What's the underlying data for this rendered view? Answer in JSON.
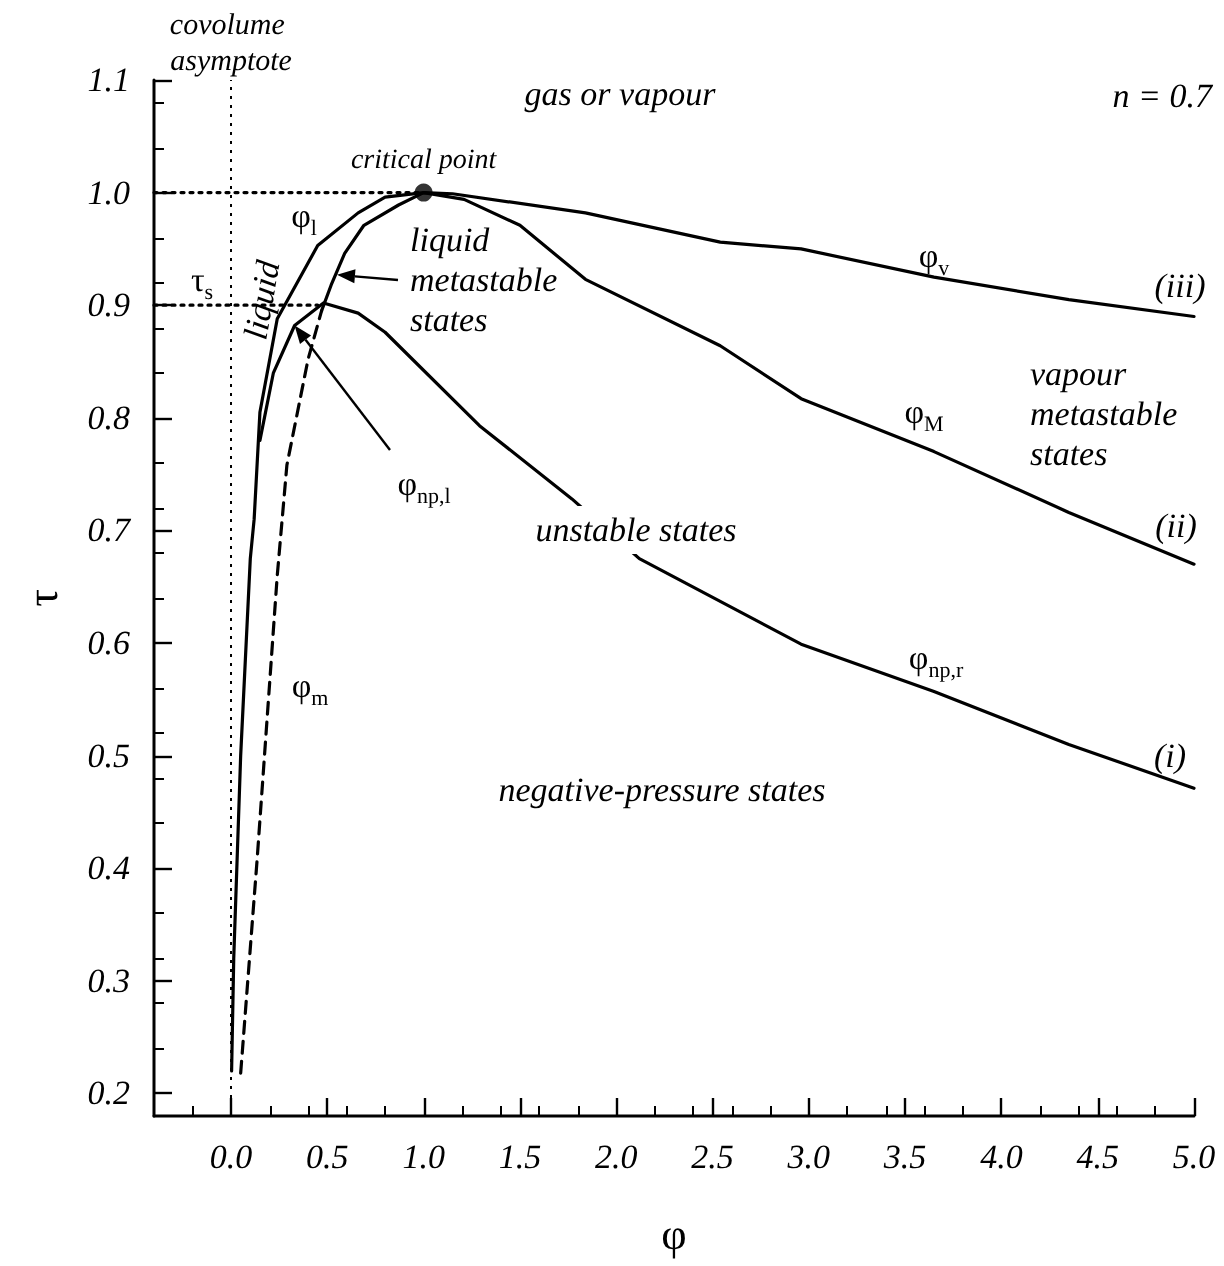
{
  "chart_data": {
    "type": "line",
    "xlabel": "φ",
    "ylabel": "τ",
    "xlim": [
      -0.4,
      5.0
    ],
    "ylim": [
      0.18,
      1.1
    ],
    "xticks": [
      {
        "value": 0,
        "label": "0.0"
      },
      0.5,
      {
        "value": 1,
        "label": "1.0"
      },
      1.5,
      {
        "value": 2,
        "label": "2.0"
      },
      2.5,
      {
        "value": 3,
        "label": "3.0"
      },
      3.5,
      {
        "value": 4,
        "label": "4.0"
      },
      4.5,
      {
        "value": 5,
        "label": "5.0"
      }
    ],
    "yticks": [
      0.2,
      0.3,
      0.4,
      0.5,
      0.6,
      0.7,
      0.8,
      0.9,
      {
        "value": 1,
        "label": "1.0"
      },
      1.1
    ],
    "grid": false,
    "series": [
      {
        "color": "#000000",
        "line_style": "solid",
        "x": [
          0.003,
          0.014,
          0.05,
          0.1,
          0.12,
          0.15,
          0.24,
          0.45,
          0.66,
          0.8,
          1.0,
          1.15,
          1.84,
          2.54,
          2.96,
          3.65,
          4.35,
          5.0
        ],
        "values": [
          0.22,
          0.32,
          0.5,
          0.675,
          0.71,
          0.805,
          0.888,
          0.953,
          0.982,
          0.996,
          1.0,
          0.999,
          0.982,
          0.956,
          0.95,
          0.925,
          0.905,
          0.89
        ]
      },
      {
        "color": "#000000",
        "line_style": "solid",
        "x": [
          0.47,
          0.52,
          0.59,
          0.69,
          0.87,
          1.0,
          1.21,
          1.5,
          1.84,
          2.54,
          2.96,
          3.65,
          4.35,
          5.0
        ],
        "values": [
          0.895,
          0.918,
          0.946,
          0.971,
          0.989,
          1.0,
          0.994,
          0.971,
          0.923,
          0.864,
          0.817,
          0.77,
          0.716,
          0.67
        ]
      },
      {
        "color": "#000000",
        "line_style": "solid",
        "x": [
          0.15,
          0.22,
          0.33,
          0.48,
          0.66,
          0.8,
          1.29,
          1.77,
          2.12,
          2.96,
          3.65,
          4.35,
          5.0
        ],
        "values": [
          0.78,
          0.84,
          0.882,
          0.902,
          0.893,
          0.876,
          0.793,
          0.728,
          0.675,
          0.599,
          0.557,
          0.51,
          0.471
        ]
      },
      {
        "color": "#000000",
        "line_style": "dashed",
        "x": [
          0.05,
          0.136,
          0.24,
          0.29,
          0.4,
          0.47
        ],
        "values": [
          0.218,
          0.409,
          0.66,
          0.758,
          0.852,
          0.895
        ]
      },
      {
        "color": "#000000",
        "line_style": "dotted",
        "x": [
          -0.4,
          1.0
        ],
        "values": [
          1.0,
          1.0
        ]
      },
      {
        "color": "#000000",
        "line_style": "dotted",
        "x": [
          -0.4,
          0.45
        ],
        "values": [
          0.9,
          0.9
        ]
      },
      {
        "type": "scatter",
        "color": "#000000",
        "x": [
          1.0
        ],
        "values": [
          1.0
        ]
      }
    ],
    "ref_lines": [
      {
        "axis": "x",
        "value": 0,
        "label": "covolume asymptote",
        "color": "#000000",
        "line_style": "dotted"
      }
    ],
    "annotations": [
      "gas or vapour",
      "n = 0.7",
      {
        "text": "critical point",
        "x": 1.0,
        "y": 1.0
      },
      "φ$_{l}$",
      "liquid",
      "τ$_{s}$",
      {
        "text": "liquid metastable states",
        "x": 0.55,
        "y": 0.927
      },
      {
        "text": "φ$_{np,l}$",
        "x": 0.33,
        "y": 0.882
      },
      "unstable states",
      "vapour metastable states",
      "φ$_{v}$",
      "(iii)",
      "φ$_{M}$",
      "(ii)",
      "φ$_{np,r}$",
      "(i)",
      "negative-pressure states",
      "φ$_{m}$"
    ]
  }
}
